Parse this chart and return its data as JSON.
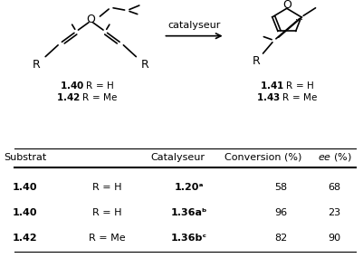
{
  "title": "",
  "background_color": "#ffffff",
  "table": {
    "headers": [
      "Substrat",
      "Catalyseur",
      "Conversion (%)",
      "ee (%)"
    ],
    "rows": [
      [
        "1.40",
        "R = H",
        "1.20ᵃ",
        "58",
        "68"
      ],
      [
        "1.40",
        "R = H",
        "1.36aᵇ",
        "96",
        "23"
      ],
      [
        "1.42",
        "R = Me",
        "1.36bᶜ",
        "82",
        "90"
      ]
    ]
  },
  "figure_width": 4.01,
  "figure_height": 2.85,
  "dpi": 100
}
